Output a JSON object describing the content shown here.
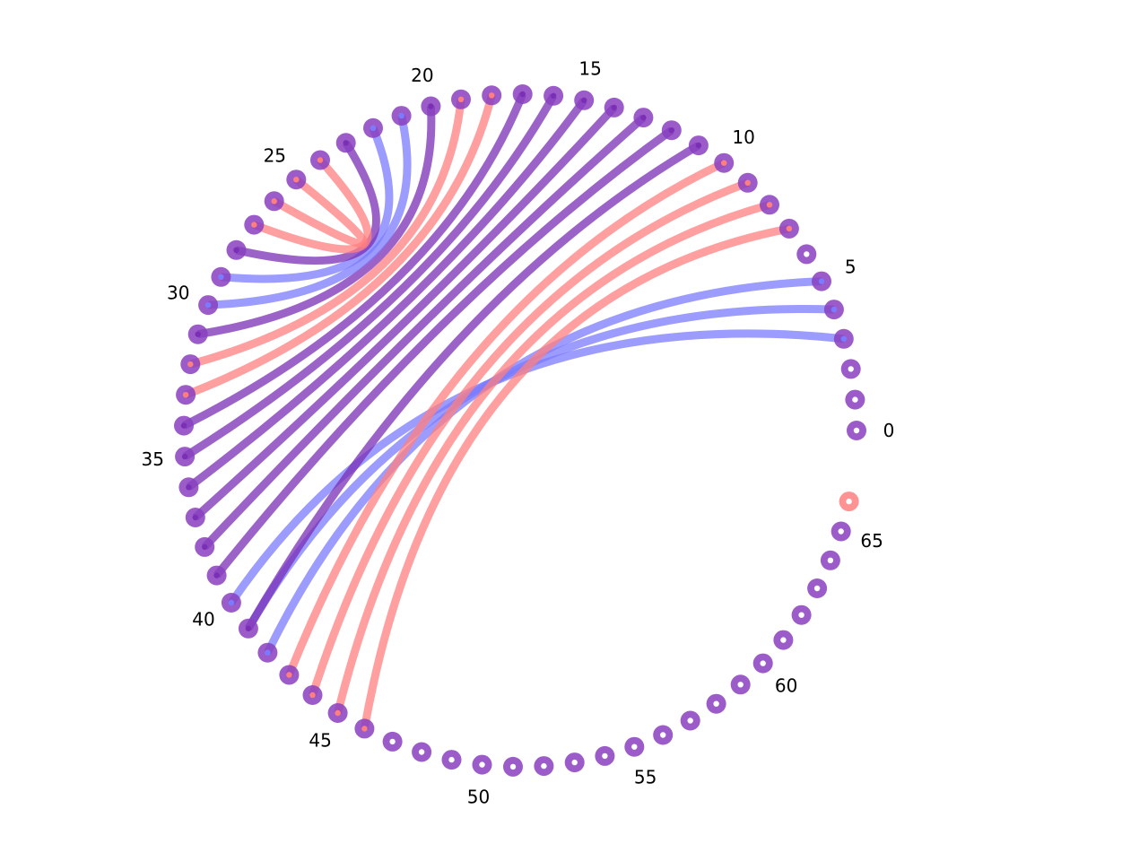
{
  "diagram": {
    "type": "arc-plot",
    "node_count": 67,
    "tick_labels": [
      {
        "index": 0,
        "text": "0"
      },
      {
        "index": 5,
        "text": "5"
      },
      {
        "index": 10,
        "text": "10"
      },
      {
        "index": 15,
        "text": "15"
      },
      {
        "index": 20,
        "text": "20"
      },
      {
        "index": 25,
        "text": "25"
      },
      {
        "index": 30,
        "text": "30"
      },
      {
        "index": 35,
        "text": "35"
      },
      {
        "index": 40,
        "text": "40"
      },
      {
        "index": 45,
        "text": "45"
      },
      {
        "index": 50,
        "text": "50"
      },
      {
        "index": 55,
        "text": "55"
      },
      {
        "index": 60,
        "text": "60"
      },
      {
        "index": 65,
        "text": "65"
      }
    ],
    "highlight_node": {
      "index": 66,
      "color": "#ff8080"
    },
    "colors": {
      "node": "#8a3fbf",
      "blue": "#7b7bff",
      "red": "#ff7f7f",
      "purple": "#7a2fb5",
      "node_center": "#ffffff"
    },
    "links": [
      {
        "a": 3,
        "b": 40,
        "color": "blue"
      },
      {
        "a": 4,
        "b": 41,
        "color": "blue"
      },
      {
        "a": 5,
        "b": 42,
        "color": "blue"
      },
      {
        "a": 7,
        "b": 46,
        "color": "red"
      },
      {
        "a": 8,
        "b": 45,
        "color": "red"
      },
      {
        "a": 9,
        "b": 44,
        "color": "red"
      },
      {
        "a": 10,
        "b": 43,
        "color": "red"
      },
      {
        "a": 11,
        "b": 41,
        "color": "purple"
      },
      {
        "a": 12,
        "b": 39,
        "color": "purple"
      },
      {
        "a": 13,
        "b": 38,
        "color": "purple"
      },
      {
        "a": 14,
        "b": 37,
        "color": "purple"
      },
      {
        "a": 15,
        "b": 36,
        "color": "purple"
      },
      {
        "a": 16,
        "b": 35,
        "color": "purple"
      },
      {
        "a": 17,
        "b": 34,
        "color": "purple"
      },
      {
        "a": 18,
        "b": 33,
        "color": "red"
      },
      {
        "a": 19,
        "b": 32,
        "color": "red"
      },
      {
        "a": 20,
        "b": 31,
        "color": "purple"
      },
      {
        "a": 21,
        "b": 30,
        "color": "blue"
      },
      {
        "a": 22,
        "b": 29,
        "color": "blue"
      },
      {
        "a": 23,
        "b": 28,
        "color": "purple"
      },
      {
        "a": 24,
        "b": 27,
        "color": "red"
      },
      {
        "a": 25,
        "b": 26,
        "color": "red"
      }
    ]
  }
}
